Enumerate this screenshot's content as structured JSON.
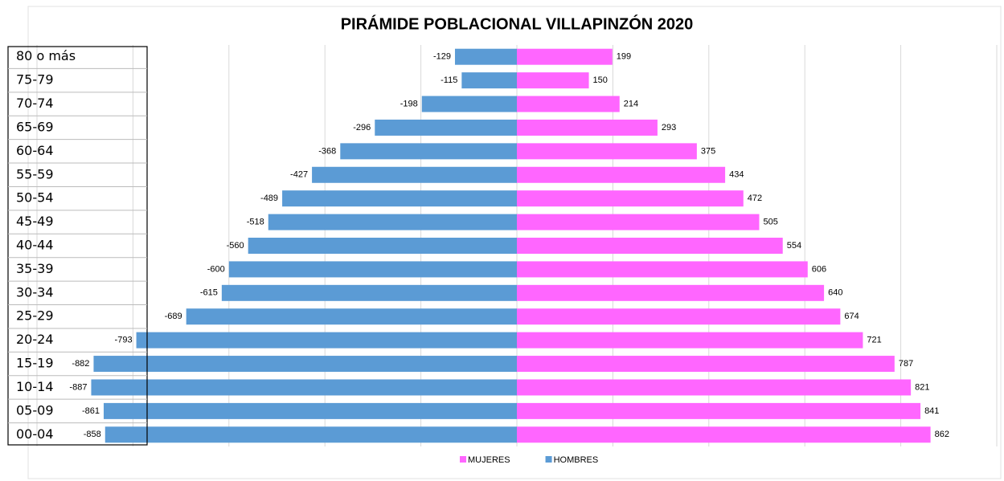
{
  "chart_data": {
    "type": "bar",
    "orientation": "horizontal",
    "stacked": "diverging",
    "title": "PIRÁMIDE POBLACIONAL VILLAPINZÓN 2020",
    "categories": [
      "80 o más",
      "75-79",
      "70-74",
      "65-69",
      "60-64",
      "55-59",
      "50-54",
      "45-49",
      "40-44",
      "35-39",
      "30-34",
      "25-29",
      "20-24",
      "15-19",
      "10-14",
      "05-09",
      "00-04"
    ],
    "series": [
      {
        "name": "MUJERES",
        "color": "#ff66ff",
        "values": [
          199,
          150,
          214,
          293,
          375,
          434,
          472,
          505,
          554,
          606,
          640,
          674,
          721,
          787,
          821,
          841,
          862
        ]
      },
      {
        "name": "HOMBRES",
        "color": "#5b9bd5",
        "values": [
          -129,
          -115,
          -198,
          -296,
          -368,
          -427,
          -489,
          -518,
          -560,
          -600,
          -615,
          -689,
          -793,
          -882,
          -887,
          -861,
          -858
        ]
      }
    ],
    "xlim": [
      -1000,
      1000
    ],
    "xticks": [
      -1000,
      -800,
      -600,
      -400,
      -200,
      0,
      200,
      400,
      600,
      800,
      1000
    ],
    "grid": true,
    "legend": "bottom"
  }
}
